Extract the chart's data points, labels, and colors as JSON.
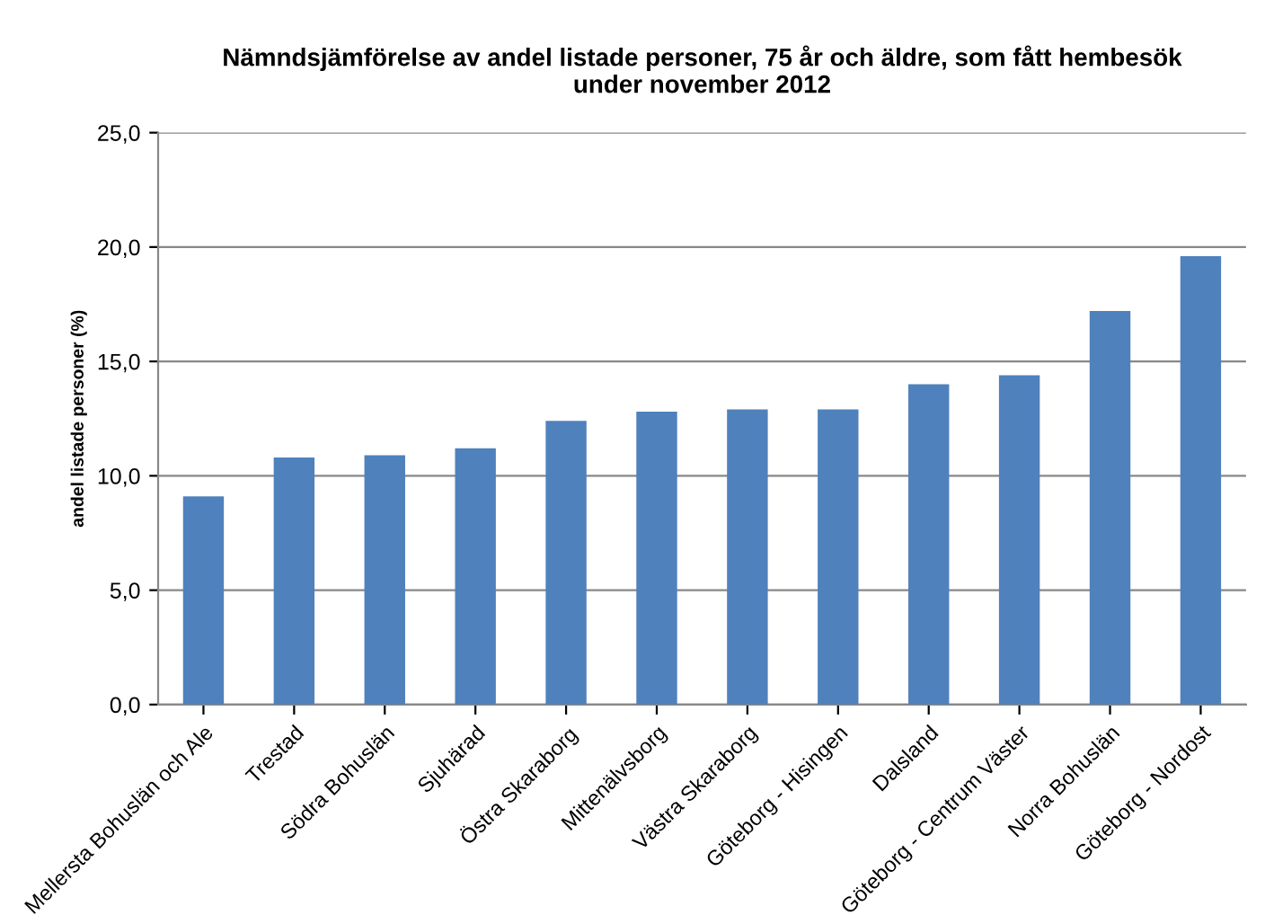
{
  "chart_data": {
    "type": "bar",
    "title": "Nämndsjämförelse av andel listade personer, 75 år och äldre, som fått hembesök\nunder november 2012",
    "ylabel": "andel listade personer (%)",
    "categories": [
      "Mellersta Bohuslän och Ale",
      "Trestad",
      "Södra Bohuslän",
      "Sjuhärad",
      "Östra Skaraborg",
      "Mittenälvsborg",
      "Västra Skaraborg",
      "Göteborg - Hisingen",
      "Dalsland",
      "Göteborg - Centrum Väster",
      "Norra Bohuslän",
      "Göteborg - Nordost"
    ],
    "values": [
      9.1,
      10.8,
      10.9,
      11.2,
      12.4,
      12.8,
      12.9,
      12.9,
      14.0,
      14.4,
      17.2,
      19.6
    ],
    "color": "#4f81bd",
    "ylim": [
      0,
      25
    ],
    "yticks": [
      {
        "value": 0,
        "label": "0,0"
      },
      {
        "value": 5,
        "label": "5,0"
      },
      {
        "value": 10,
        "label": "10,0"
      },
      {
        "value": 15,
        "label": "15,0"
      },
      {
        "value": 20,
        "label": "20,0"
      },
      {
        "value": 25,
        "label": "25,0"
      }
    ],
    "grid": "y"
  }
}
